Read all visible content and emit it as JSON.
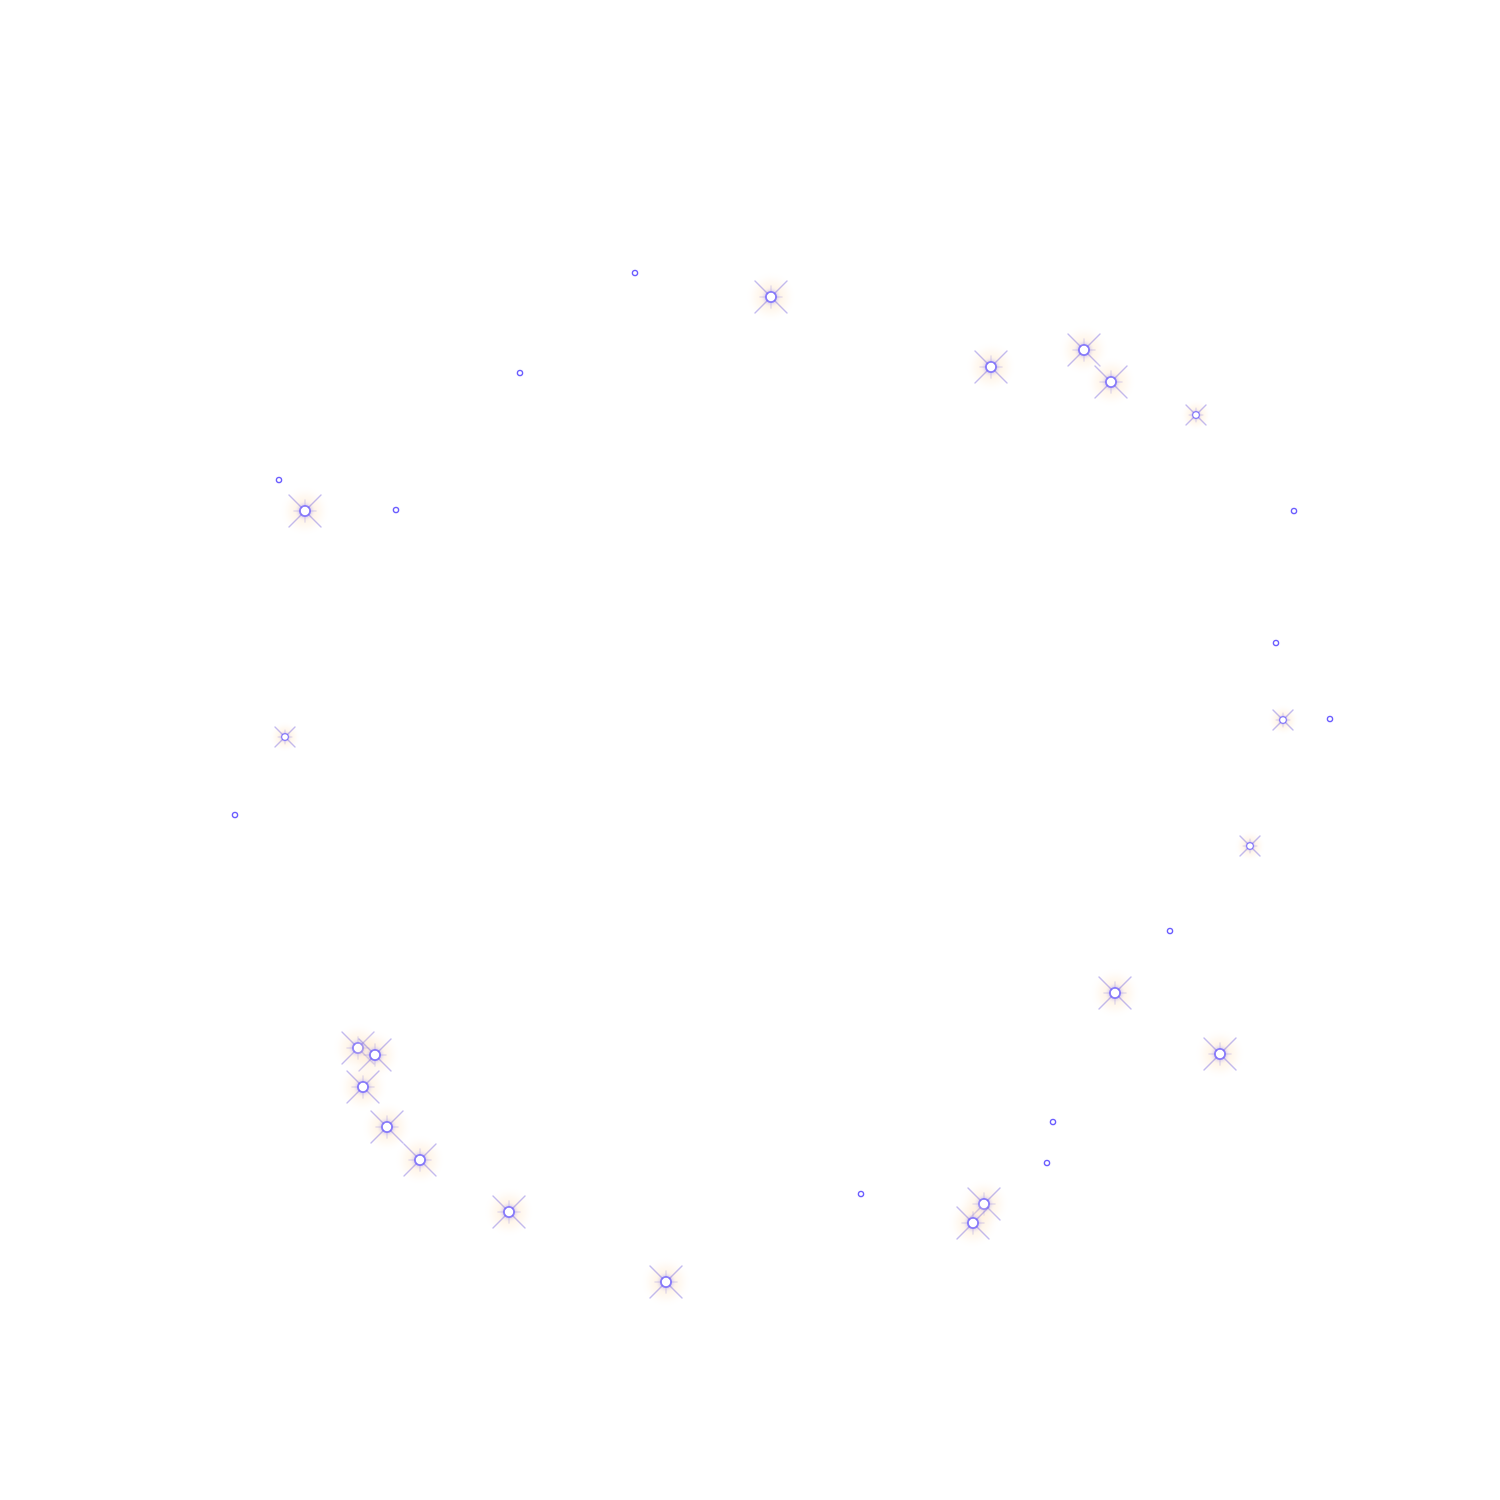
{
  "scene": {
    "description_kind": "sparkle-ring",
    "colors": {
      "background": "#ffffff",
      "core": "#ffffff",
      "ring": "#6a5cff",
      "glow_blue": "#8a7dff",
      "glow_warm": "#ffd9a8",
      "spike": "#7b6ae0"
    },
    "sparkles": [
      {
        "size": "small"
      },
      {
        "size": "large"
      },
      {
        "size": "small"
      },
      {
        "size": "large"
      },
      {
        "size": "large"
      },
      {
        "size": "large"
      },
      {
        "size": "small"
      },
      {
        "size": "large"
      },
      {
        "size": "small"
      },
      {
        "size": "small"
      },
      {
        "size": "medium"
      },
      {
        "size": "small"
      },
      {
        "size": "medium"
      },
      {
        "size": "small"
      },
      {
        "size": "medium"
      },
      {
        "size": "small"
      },
      {
        "size": "medium"
      },
      {
        "size": "small"
      },
      {
        "size": "large"
      },
      {
        "size": "large"
      },
      {
        "size": "large"
      },
      {
        "size": "large"
      },
      {
        "size": "large"
      },
      {
        "size": "large"
      },
      {
        "size": "large"
      },
      {
        "size": "large"
      },
      {
        "size": "large"
      },
      {
        "size": "small"
      },
      {
        "size": "large"
      },
      {
        "size": "large"
      },
      {
        "size": "small"
      },
      {
        "size": "small"
      },
      {
        "size": "medium"
      }
    ]
  }
}
